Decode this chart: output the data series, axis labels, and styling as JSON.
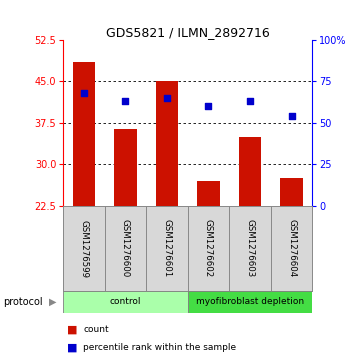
{
  "title": "GDS5821 / ILMN_2892716",
  "samples": [
    "GSM1276599",
    "GSM1276600",
    "GSM1276601",
    "GSM1276602",
    "GSM1276603",
    "GSM1276604"
  ],
  "counts": [
    48.5,
    36.5,
    45.0,
    27.0,
    35.0,
    27.5
  ],
  "percentiles": [
    68,
    63,
    65,
    60,
    63,
    54
  ],
  "bar_color": "#cc1100",
  "dot_color": "#0000cc",
  "ylim_left": [
    22.5,
    52.5
  ],
  "yticks_left": [
    22.5,
    30,
    37.5,
    45,
    52.5
  ],
  "ylim_right": [
    0,
    100
  ],
  "yticks_right": [
    0,
    25,
    50,
    75,
    100
  ],
  "ytick_labels_right": [
    "0",
    "25",
    "50",
    "75",
    "100%"
  ],
  "protocol_groups": [
    {
      "label": "control",
      "samples": [
        0,
        1,
        2
      ],
      "color": "#aaffaa"
    },
    {
      "label": "myofibroblast depletion",
      "samples": [
        3,
        4,
        5
      ],
      "color": "#44dd44"
    }
  ],
  "bar_bottom": 22.5,
  "grid_yticks": [
    30,
    37.5,
    45
  ],
  "bg_color": "#ffffff",
  "sample_box_color": "#d8d8d8",
  "sample_box_edge": "#888888"
}
